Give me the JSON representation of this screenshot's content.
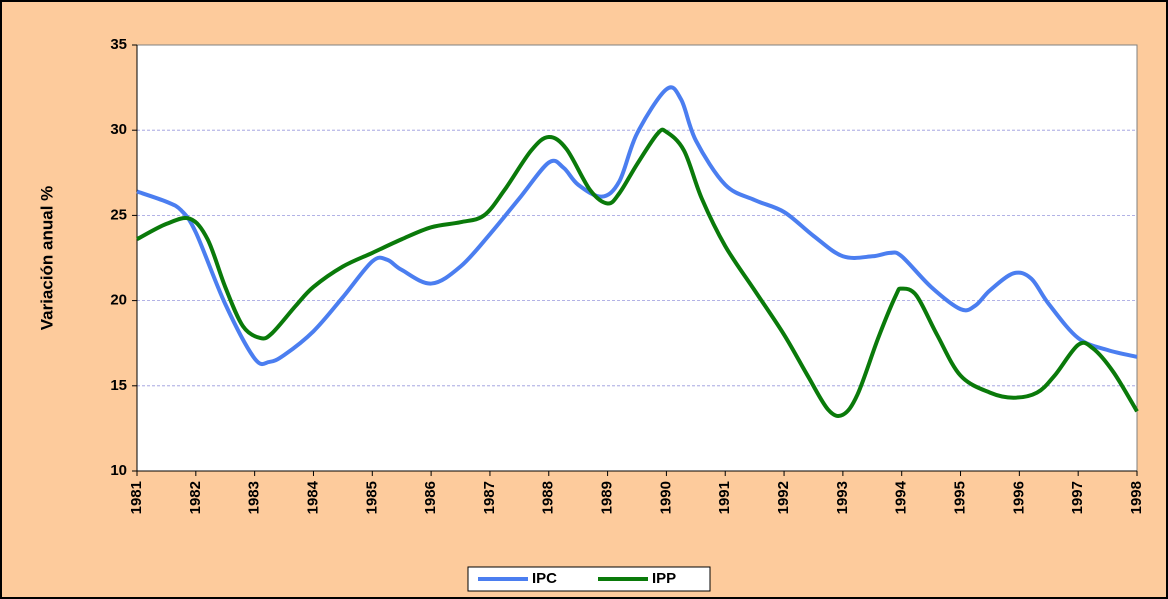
{
  "chart_data": {
    "type": "line",
    "y_label": "Variación anual %",
    "xlim": [
      1981,
      1998
    ],
    "xticks": [
      1981,
      1982,
      1983,
      1984,
      1985,
      1986,
      1987,
      1988,
      1989,
      1990,
      1991,
      1992,
      1993,
      1994,
      1995,
      1996,
      1997,
      1998
    ],
    "ylim": [
      10,
      35
    ],
    "yticks": [
      10,
      15,
      20,
      25,
      30,
      35
    ],
    "grid": true,
    "legend": "bottom",
    "series": [
      {
        "name": "IPC",
        "color": "#4b7ef0",
        "x": [
          1981.0,
          1981.5,
          1981.75,
          1982.0,
          1982.5,
          1983.0,
          1983.25,
          1983.5,
          1984.0,
          1984.5,
          1985.0,
          1985.25,
          1985.5,
          1986.0,
          1986.5,
          1987.0,
          1987.5,
          1988.0,
          1988.25,
          1988.5,
          1988.9,
          1989.2,
          1989.5,
          1990.0,
          1990.25,
          1990.5,
          1991.0,
          1991.5,
          1992.0,
          1992.5,
          1993.0,
          1993.5,
          1993.8,
          1994.0,
          1994.5,
          1995.0,
          1995.25,
          1995.5,
          1995.9,
          1996.2,
          1996.5,
          1997.0,
          1997.5,
          1998.0
        ],
        "values": [
          26.4,
          25.8,
          25.3,
          24.0,
          19.8,
          16.6,
          16.4,
          16.8,
          18.2,
          20.2,
          22.3,
          22.4,
          21.8,
          21.0,
          22.0,
          23.9,
          26.0,
          28.1,
          27.8,
          26.8,
          26.1,
          27.0,
          29.8,
          32.4,
          31.8,
          29.4,
          26.8,
          25.9,
          25.2,
          23.8,
          22.6,
          22.6,
          22.8,
          22.6,
          20.8,
          19.5,
          19.7,
          20.6,
          21.6,
          21.3,
          19.8,
          17.8,
          17.1,
          16.7
        ]
      },
      {
        "name": "IPP",
        "color": "#0a7a0a",
        "x": [
          1981.0,
          1981.5,
          1981.9,
          1982.2,
          1982.5,
          1982.8,
          1983.1,
          1983.3,
          1983.7,
          1984.0,
          1984.5,
          1985.0,
          1985.5,
          1986.0,
          1986.5,
          1986.9,
          1987.25,
          1987.7,
          1988.0,
          1988.3,
          1988.7,
          1989.0,
          1989.2,
          1989.5,
          1989.85,
          1990.0,
          1990.3,
          1990.6,
          1991.0,
          1991.5,
          1992.0,
          1992.4,
          1992.75,
          1993.0,
          1993.25,
          1993.6,
          1993.9,
          1994.0,
          1994.25,
          1994.6,
          1995.0,
          1995.5,
          1995.9,
          1996.3,
          1996.6,
          1997.0,
          1997.25,
          1997.6,
          1998.0
        ],
        "values": [
          23.6,
          24.5,
          24.8,
          23.6,
          20.8,
          18.5,
          17.8,
          18.1,
          19.7,
          20.8,
          22.0,
          22.8,
          23.6,
          24.3,
          24.6,
          25.0,
          26.5,
          28.8,
          29.6,
          28.9,
          26.5,
          25.7,
          26.3,
          28.0,
          29.8,
          29.9,
          28.8,
          26.0,
          23.2,
          20.6,
          18.0,
          15.6,
          13.6,
          13.3,
          14.5,
          17.8,
          20.3,
          20.7,
          20.3,
          18.0,
          15.6,
          14.6,
          14.3,
          14.6,
          15.6,
          17.4,
          17.2,
          15.8,
          13.5
        ]
      }
    ]
  }
}
